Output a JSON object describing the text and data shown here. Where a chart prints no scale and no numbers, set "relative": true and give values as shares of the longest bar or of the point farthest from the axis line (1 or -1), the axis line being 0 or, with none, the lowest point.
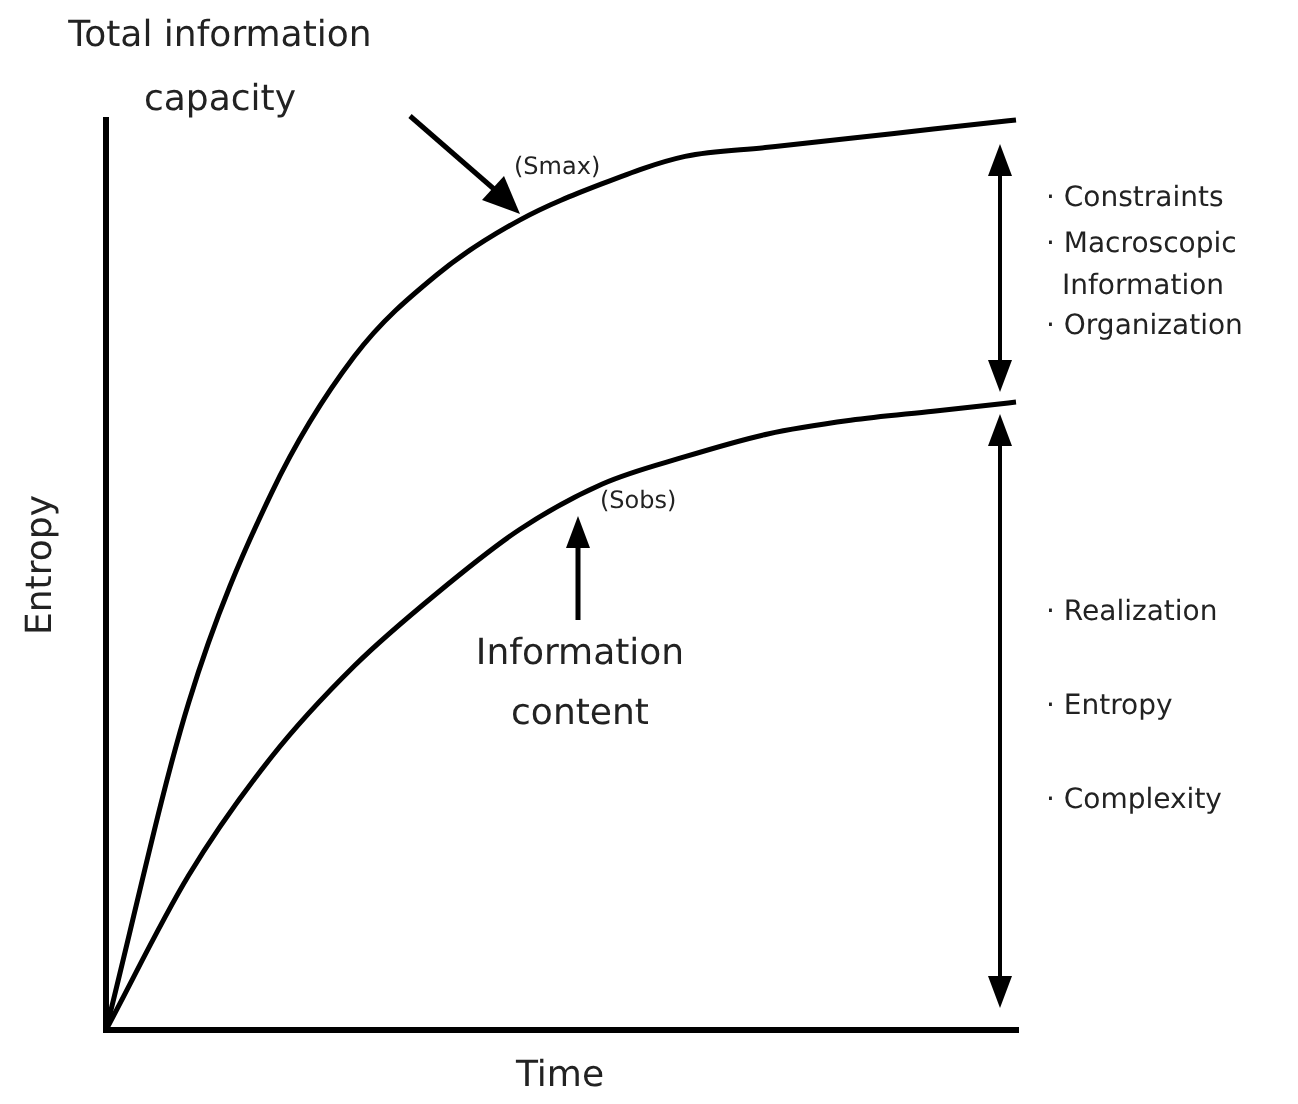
{
  "chart_data": {
    "type": "line",
    "relative": true,
    "xlabel": "Time",
    "ylabel": "Entropy",
    "categories": [
      null,
      null,
      null,
      null,
      null,
      null,
      null,
      null,
      null,
      null,
      null,
      null
    ],
    "series": [
      {
        "color": "#000000",
        "values": [
          0,
          0.36,
          0.59,
          0.74,
          0.83,
          0.89,
          0.93,
          0.96,
          0.97,
          0.98,
          0.99,
          1
        ]
      },
      {
        "color": "#000000",
        "values": [
          0,
          0.17,
          0.3,
          0.4,
          0.48,
          0.55,
          0.6,
          0.63,
          0.655,
          0.67,
          0.68,
          0.69
        ]
      }
    ],
    "annotations": [
      "Total information capacity",
      "(Smax)",
      "(Sobs)",
      "Information content",
      "· Constraints",
      "· Macroscopic Information",
      "· Organization",
      "· Realization",
      "· Entropy",
      "· Complexity"
    ]
  }
}
